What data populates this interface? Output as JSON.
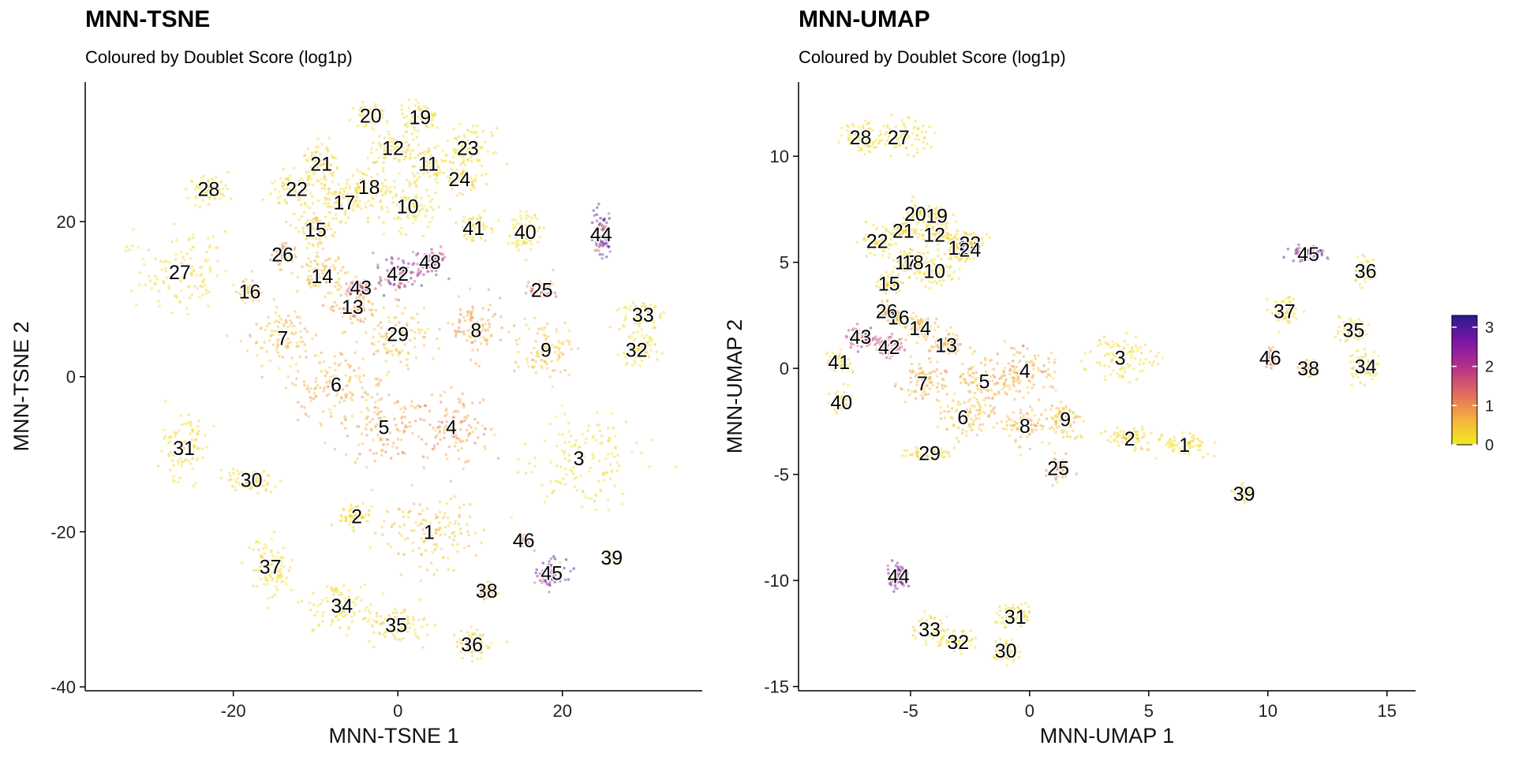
{
  "chart_data": [
    {
      "type": "scatter",
      "title": "MNN-TSNE",
      "subtitle": "Coloured by Doublet Score (log1p)",
      "xlabel": "MNN-TSNE 1",
      "ylabel": "MNN-TSNE 2",
      "xlim": [
        -38,
        37
      ],
      "ylim": [
        -40.5,
        38
      ],
      "xticks": [
        -20,
        0,
        20
      ],
      "yticks": [
        -40,
        -20,
        0,
        20
      ],
      "grid": false,
      "color_scale": [
        "#f2ea1f",
        "#f4b83a",
        "#e3705c",
        "#b8308a",
        "#7a16a8",
        "#2a1b8f"
      ],
      "clusters": [
        {
          "label": "1",
          "x": 3.8,
          "y": -20,
          "spread": [
            5.5,
            4
          ],
          "score": 0.5
        },
        {
          "label": "2",
          "x": -5,
          "y": -18,
          "spread": [
            1.5,
            1.2
          ],
          "score": 0.3
        },
        {
          "label": "3",
          "x": 22,
          "y": -10.5,
          "spread": [
            6,
            5
          ],
          "score": 0.2
        },
        {
          "label": "4",
          "x": 6.5,
          "y": -6.5,
          "spread": [
            4,
            4
          ],
          "score": 0.9
        },
        {
          "label": "5",
          "x": -1.7,
          "y": -6.5,
          "spread": [
            4,
            4
          ],
          "score": 0.8
        },
        {
          "label": "6",
          "x": -7.5,
          "y": -1,
          "spread": [
            5,
            4
          ],
          "score": 0.7
        },
        {
          "label": "7",
          "x": -14,
          "y": 5,
          "spread": [
            3,
            3
          ],
          "score": 0.6
        },
        {
          "label": "8",
          "x": 9.5,
          "y": 6,
          "spread": [
            3,
            3
          ],
          "score": 0.8
        },
        {
          "label": "9",
          "x": 18,
          "y": 3.5,
          "spread": [
            2.5,
            3
          ],
          "score": 0.5
        },
        {
          "label": "10",
          "x": 1.2,
          "y": 22,
          "spread": [
            3,
            2.5
          ],
          "score": 0.2
        },
        {
          "label": "11",
          "x": 3.7,
          "y": 27.5,
          "spread": [
            2,
            2
          ],
          "score": 0.3
        },
        {
          "label": "12",
          "x": -0.6,
          "y": 29.5,
          "spread": [
            2,
            2
          ],
          "score": 0.3
        },
        {
          "label": "13",
          "x": -5.5,
          "y": 9,
          "spread": [
            2.5,
            2
          ],
          "score": 0.9
        },
        {
          "label": "14",
          "x": -9.2,
          "y": 13,
          "spread": [
            2.5,
            2
          ],
          "score": 0.6
        },
        {
          "label": "15",
          "x": -10,
          "y": 19,
          "spread": [
            2,
            2
          ],
          "score": 0.4
        },
        {
          "label": "16",
          "x": -18,
          "y": 11,
          "spread": [
            1.2,
            1.2
          ],
          "score": 0.6
        },
        {
          "label": "17",
          "x": -6.5,
          "y": 22.5,
          "spread": [
            2,
            2
          ],
          "score": 0.3
        },
        {
          "label": "18",
          "x": -3.5,
          "y": 24.5,
          "spread": [
            2,
            2
          ],
          "score": 0.3
        },
        {
          "label": "19",
          "x": 2.7,
          "y": 33.5,
          "spread": [
            2,
            1.5
          ],
          "score": 0.2
        },
        {
          "label": "20",
          "x": -3.3,
          "y": 33.7,
          "spread": [
            1.5,
            1.2
          ],
          "score": 0.2
        },
        {
          "label": "21",
          "x": -9.3,
          "y": 27.5,
          "spread": [
            2,
            2
          ],
          "score": 0.3
        },
        {
          "label": "22",
          "x": -12.3,
          "y": 24.2,
          "spread": [
            2.5,
            2
          ],
          "score": 0.2
        },
        {
          "label": "23",
          "x": 8.5,
          "y": 29.5,
          "spread": [
            2.5,
            2
          ],
          "score": 0.2
        },
        {
          "label": "24",
          "x": 7.5,
          "y": 25.5,
          "spread": [
            2,
            1.5
          ],
          "score": 0.3
        },
        {
          "label": "25",
          "x": 17.5,
          "y": 11.2,
          "spread": [
            1.2,
            1
          ],
          "score": 1.2
        },
        {
          "label": "26",
          "x": -14,
          "y": 15.8,
          "spread": [
            1.2,
            1.2
          ],
          "score": 0.9
        },
        {
          "label": "27",
          "x": -26.5,
          "y": 13.5,
          "spread": [
            4.5,
            4
          ],
          "score": 0.2
        },
        {
          "label": "28",
          "x": -23,
          "y": 24.2,
          "spread": [
            2,
            1.5
          ],
          "score": 0.2
        },
        {
          "label": "29",
          "x": 0,
          "y": 5.5,
          "spread": [
            3,
            3
          ],
          "score": 0.6
        },
        {
          "label": "30",
          "x": -17.8,
          "y": -13.3,
          "spread": [
            2.5,
            1.2
          ],
          "score": 0.2
        },
        {
          "label": "31",
          "x": -26,
          "y": -9.2,
          "spread": [
            2.5,
            3.5
          ],
          "score": 0.2
        },
        {
          "label": "32",
          "x": 29,
          "y": 3.5,
          "spread": [
            2,
            1.8
          ],
          "score": 0.2
        },
        {
          "label": "33",
          "x": 29.8,
          "y": 8,
          "spread": [
            2,
            1.8
          ],
          "score": 0.2
        },
        {
          "label": "34",
          "x": -6.8,
          "y": -29.5,
          "spread": [
            3.5,
            2.5
          ],
          "score": 0.2
        },
        {
          "label": "35",
          "x": -0.2,
          "y": -32,
          "spread": [
            3,
            2
          ],
          "score": 0.3
        },
        {
          "label": "36",
          "x": 9,
          "y": -34.5,
          "spread": [
            2,
            1.5
          ],
          "score": 0.3
        },
        {
          "label": "37",
          "x": -15.5,
          "y": -24.5,
          "spread": [
            2.5,
            3
          ],
          "score": 0.2
        },
        {
          "label": "38",
          "x": 10.8,
          "y": -27.6,
          "spread": [
            1,
            0.8
          ],
          "score": 0.7
        },
        {
          "label": "39",
          "x": 26,
          "y": -23.3,
          "spread": [
            0.6,
            0.6
          ],
          "score": 0.3
        },
        {
          "label": "40",
          "x": 15.5,
          "y": 18.7,
          "spread": [
            1.8,
            2
          ],
          "score": 0.2
        },
        {
          "label": "41",
          "x": 9.2,
          "y": 19.2,
          "spread": [
            1.5,
            1.5
          ],
          "score": 0.3
        },
        {
          "label": "42",
          "x": 0,
          "y": 13.3,
          "spread": [
            2.5,
            2
          ],
          "score": 2.3
        },
        {
          "label": "43",
          "x": -4.5,
          "y": 11.5,
          "spread": [
            1.2,
            1
          ],
          "score": 1.6
        },
        {
          "label": "44",
          "x": 24.7,
          "y": 18.4,
          "spread": [
            1.2,
            2.5
          ],
          "score": 2.5
        },
        {
          "label": "45",
          "x": 18.7,
          "y": -25.3,
          "spread": [
            1.5,
            1.5
          ],
          "score": 2.5
        },
        {
          "label": "46",
          "x": 15.3,
          "y": -21.1,
          "spread": [
            0.5,
            0.5
          ],
          "score": 1.2
        },
        {
          "label": "48",
          "x": 3.9,
          "y": 14.8,
          "spread": [
            1.5,
            1.2
          ],
          "score": 2.1
        }
      ]
    },
    {
      "type": "scatter",
      "title": "MNN-UMAP",
      "subtitle": "Coloured by Doublet Score (log1p)",
      "xlabel": "MNN-UMAP 1",
      "ylabel": "MNN-UMAP 2",
      "xlim": [
        -9.7,
        16.2
      ],
      "ylim": [
        -15.2,
        13.5
      ],
      "xticks": [
        -5,
        0,
        5,
        10,
        15
      ],
      "yticks": [
        -15,
        -10,
        -5,
        0,
        5,
        10
      ],
      "grid": false,
      "colorbar": {
        "ticks": [
          0,
          1,
          2,
          3
        ],
        "range": [
          0,
          3.3
        ]
      },
      "clusters": [
        {
          "label": "1",
          "x": 6.5,
          "y": -3.6,
          "spread": [
            0.9,
            0.4
          ],
          "score": 0.2
        },
        {
          "label": "2",
          "x": 4.2,
          "y": -3.3,
          "spread": [
            0.8,
            0.4
          ],
          "score": 0.3
        },
        {
          "label": "3",
          "x": 3.8,
          "y": 0.5,
          "spread": [
            1.2,
            0.8
          ],
          "score": 0.2
        },
        {
          "label": "4",
          "x": -0.2,
          "y": -0.1,
          "spread": [
            1.2,
            1
          ],
          "score": 0.8
        },
        {
          "label": "5",
          "x": -1.9,
          "y": -0.6,
          "spread": [
            1,
            0.9
          ],
          "score": 0.7
        },
        {
          "label": "6",
          "x": -2.8,
          "y": -2.3,
          "spread": [
            1,
            0.8
          ],
          "score": 0.6
        },
        {
          "label": "7",
          "x": -4.5,
          "y": -0.7,
          "spread": [
            0.8,
            0.8
          ],
          "score": 0.7
        },
        {
          "label": "8",
          "x": -0.2,
          "y": -2.7,
          "spread": [
            0.9,
            0.7
          ],
          "score": 0.7
        },
        {
          "label": "9",
          "x": 1.5,
          "y": -2.4,
          "spread": [
            0.6,
            0.8
          ],
          "score": 0.6
        },
        {
          "label": "10",
          "x": -4,
          "y": 4.6,
          "spread": [
            0.8,
            0.6
          ],
          "score": 0.2
        },
        {
          "label": "11",
          "x": -3,
          "y": 5.7,
          "spread": [
            0.5,
            0.5
          ],
          "score": 0.3
        },
        {
          "label": "12",
          "x": -4,
          "y": 6.3,
          "spread": [
            0.5,
            0.5
          ],
          "score": 0.3
        },
        {
          "label": "13",
          "x": -3.5,
          "y": 1.1,
          "spread": [
            0.6,
            0.5
          ],
          "score": 0.8
        },
        {
          "label": "14",
          "x": -4.6,
          "y": 1.9,
          "spread": [
            0.6,
            0.5
          ],
          "score": 0.6
        },
        {
          "label": "15",
          "x": -5.9,
          "y": 4,
          "spread": [
            0.4,
            0.4
          ],
          "score": 0.4
        },
        {
          "label": "16",
          "x": -5.5,
          "y": 2.4,
          "spread": [
            0.3,
            0.3
          ],
          "score": 0.6
        },
        {
          "label": "17",
          "x": -5.2,
          "y": 5,
          "spread": [
            0.4,
            0.4
          ],
          "score": 0.3
        },
        {
          "label": "18",
          "x": -4.9,
          "y": 5,
          "spread": [
            0.4,
            0.4
          ],
          "score": 0.3
        },
        {
          "label": "19",
          "x": -3.9,
          "y": 7.2,
          "spread": [
            0.5,
            0.4
          ],
          "score": 0.2
        },
        {
          "label": "20",
          "x": -4.8,
          "y": 7.3,
          "spread": [
            0.4,
            0.4
          ],
          "score": 0.2
        },
        {
          "label": "21",
          "x": -5.3,
          "y": 6.5,
          "spread": [
            0.4,
            0.4
          ],
          "score": 0.3
        },
        {
          "label": "22",
          "x": -6.4,
          "y": 6,
          "spread": [
            0.5,
            0.5
          ],
          "score": 0.2
        },
        {
          "label": "23",
          "x": -2.5,
          "y": 5.9,
          "spread": [
            0.5,
            0.5
          ],
          "score": 0.2
        },
        {
          "label": "24",
          "x": -2.5,
          "y": 5.6,
          "spread": [
            0.4,
            0.4
          ],
          "score": 0.3
        },
        {
          "label": "25",
          "x": 1.2,
          "y": -4.7,
          "spread": [
            0.3,
            0.5
          ],
          "score": 1.1
        },
        {
          "label": "26",
          "x": -6,
          "y": 2.7,
          "spread": [
            0.3,
            0.3
          ],
          "score": 0.8
        },
        {
          "label": "27",
          "x": -5.5,
          "y": 10.9,
          "spread": [
            1,
            0.7
          ],
          "score": 0.2
        },
        {
          "label": "28",
          "x": -7.1,
          "y": 10.9,
          "spread": [
            0.6,
            0.6
          ],
          "score": 0.2
        },
        {
          "label": "29",
          "x": -4.2,
          "y": -4,
          "spread": [
            0.7,
            0.3
          ],
          "score": 0.3
        },
        {
          "label": "30",
          "x": -1,
          "y": -13.3,
          "spread": [
            0.5,
            0.4
          ],
          "score": 0.2
        },
        {
          "label": "31",
          "x": -0.6,
          "y": -11.7,
          "spread": [
            0.6,
            0.5
          ],
          "score": 0.2
        },
        {
          "label": "32",
          "x": -3,
          "y": -12.9,
          "spread": [
            0.6,
            0.4
          ],
          "score": 0.2
        },
        {
          "label": "33",
          "x": -4.2,
          "y": -12.3,
          "spread": [
            0.6,
            0.5
          ],
          "score": 0.2
        },
        {
          "label": "34",
          "x": 14.1,
          "y": 0.1,
          "spread": [
            0.6,
            0.6
          ],
          "score": 0.2
        },
        {
          "label": "35",
          "x": 13.6,
          "y": 1.8,
          "spread": [
            0.5,
            0.5
          ],
          "score": 0.3
        },
        {
          "label": "36",
          "x": 14.1,
          "y": 4.6,
          "spread": [
            0.4,
            0.5
          ],
          "score": 0.3
        },
        {
          "label": "37",
          "x": 10.7,
          "y": 2.7,
          "spread": [
            0.5,
            0.6
          ],
          "score": 0.2
        },
        {
          "label": "38",
          "x": 11.7,
          "y": 0,
          "spread": [
            0.3,
            0.3
          ],
          "score": 0.7
        },
        {
          "label": "39",
          "x": 9,
          "y": -5.9,
          "spread": [
            0.3,
            0.3
          ],
          "score": 0.3
        },
        {
          "label": "40",
          "x": -7.9,
          "y": -1.6,
          "spread": [
            0.4,
            0.4
          ],
          "score": 0.2
        },
        {
          "label": "41",
          "x": -8,
          "y": 0.3,
          "spread": [
            0.4,
            0.4
          ],
          "score": 0.2
        },
        {
          "label": "42",
          "x": -5.9,
          "y": 1,
          "spread": [
            0.5,
            0.4
          ],
          "score": 1.8
        },
        {
          "label": "43",
          "x": -7.1,
          "y": 1.5,
          "spread": [
            0.5,
            0.4
          ],
          "score": 2.0
        },
        {
          "label": "44",
          "x": -5.5,
          "y": -9.8,
          "spread": [
            0.4,
            0.5
          ],
          "score": 2.5
        },
        {
          "label": "45",
          "x": 11.7,
          "y": 5.4,
          "spread": [
            0.6,
            0.3
          ],
          "score": 2.5
        },
        {
          "label": "46",
          "x": 10.1,
          "y": 0.5,
          "spread": [
            0.2,
            0.3
          ],
          "score": 1.3
        }
      ]
    }
  ]
}
